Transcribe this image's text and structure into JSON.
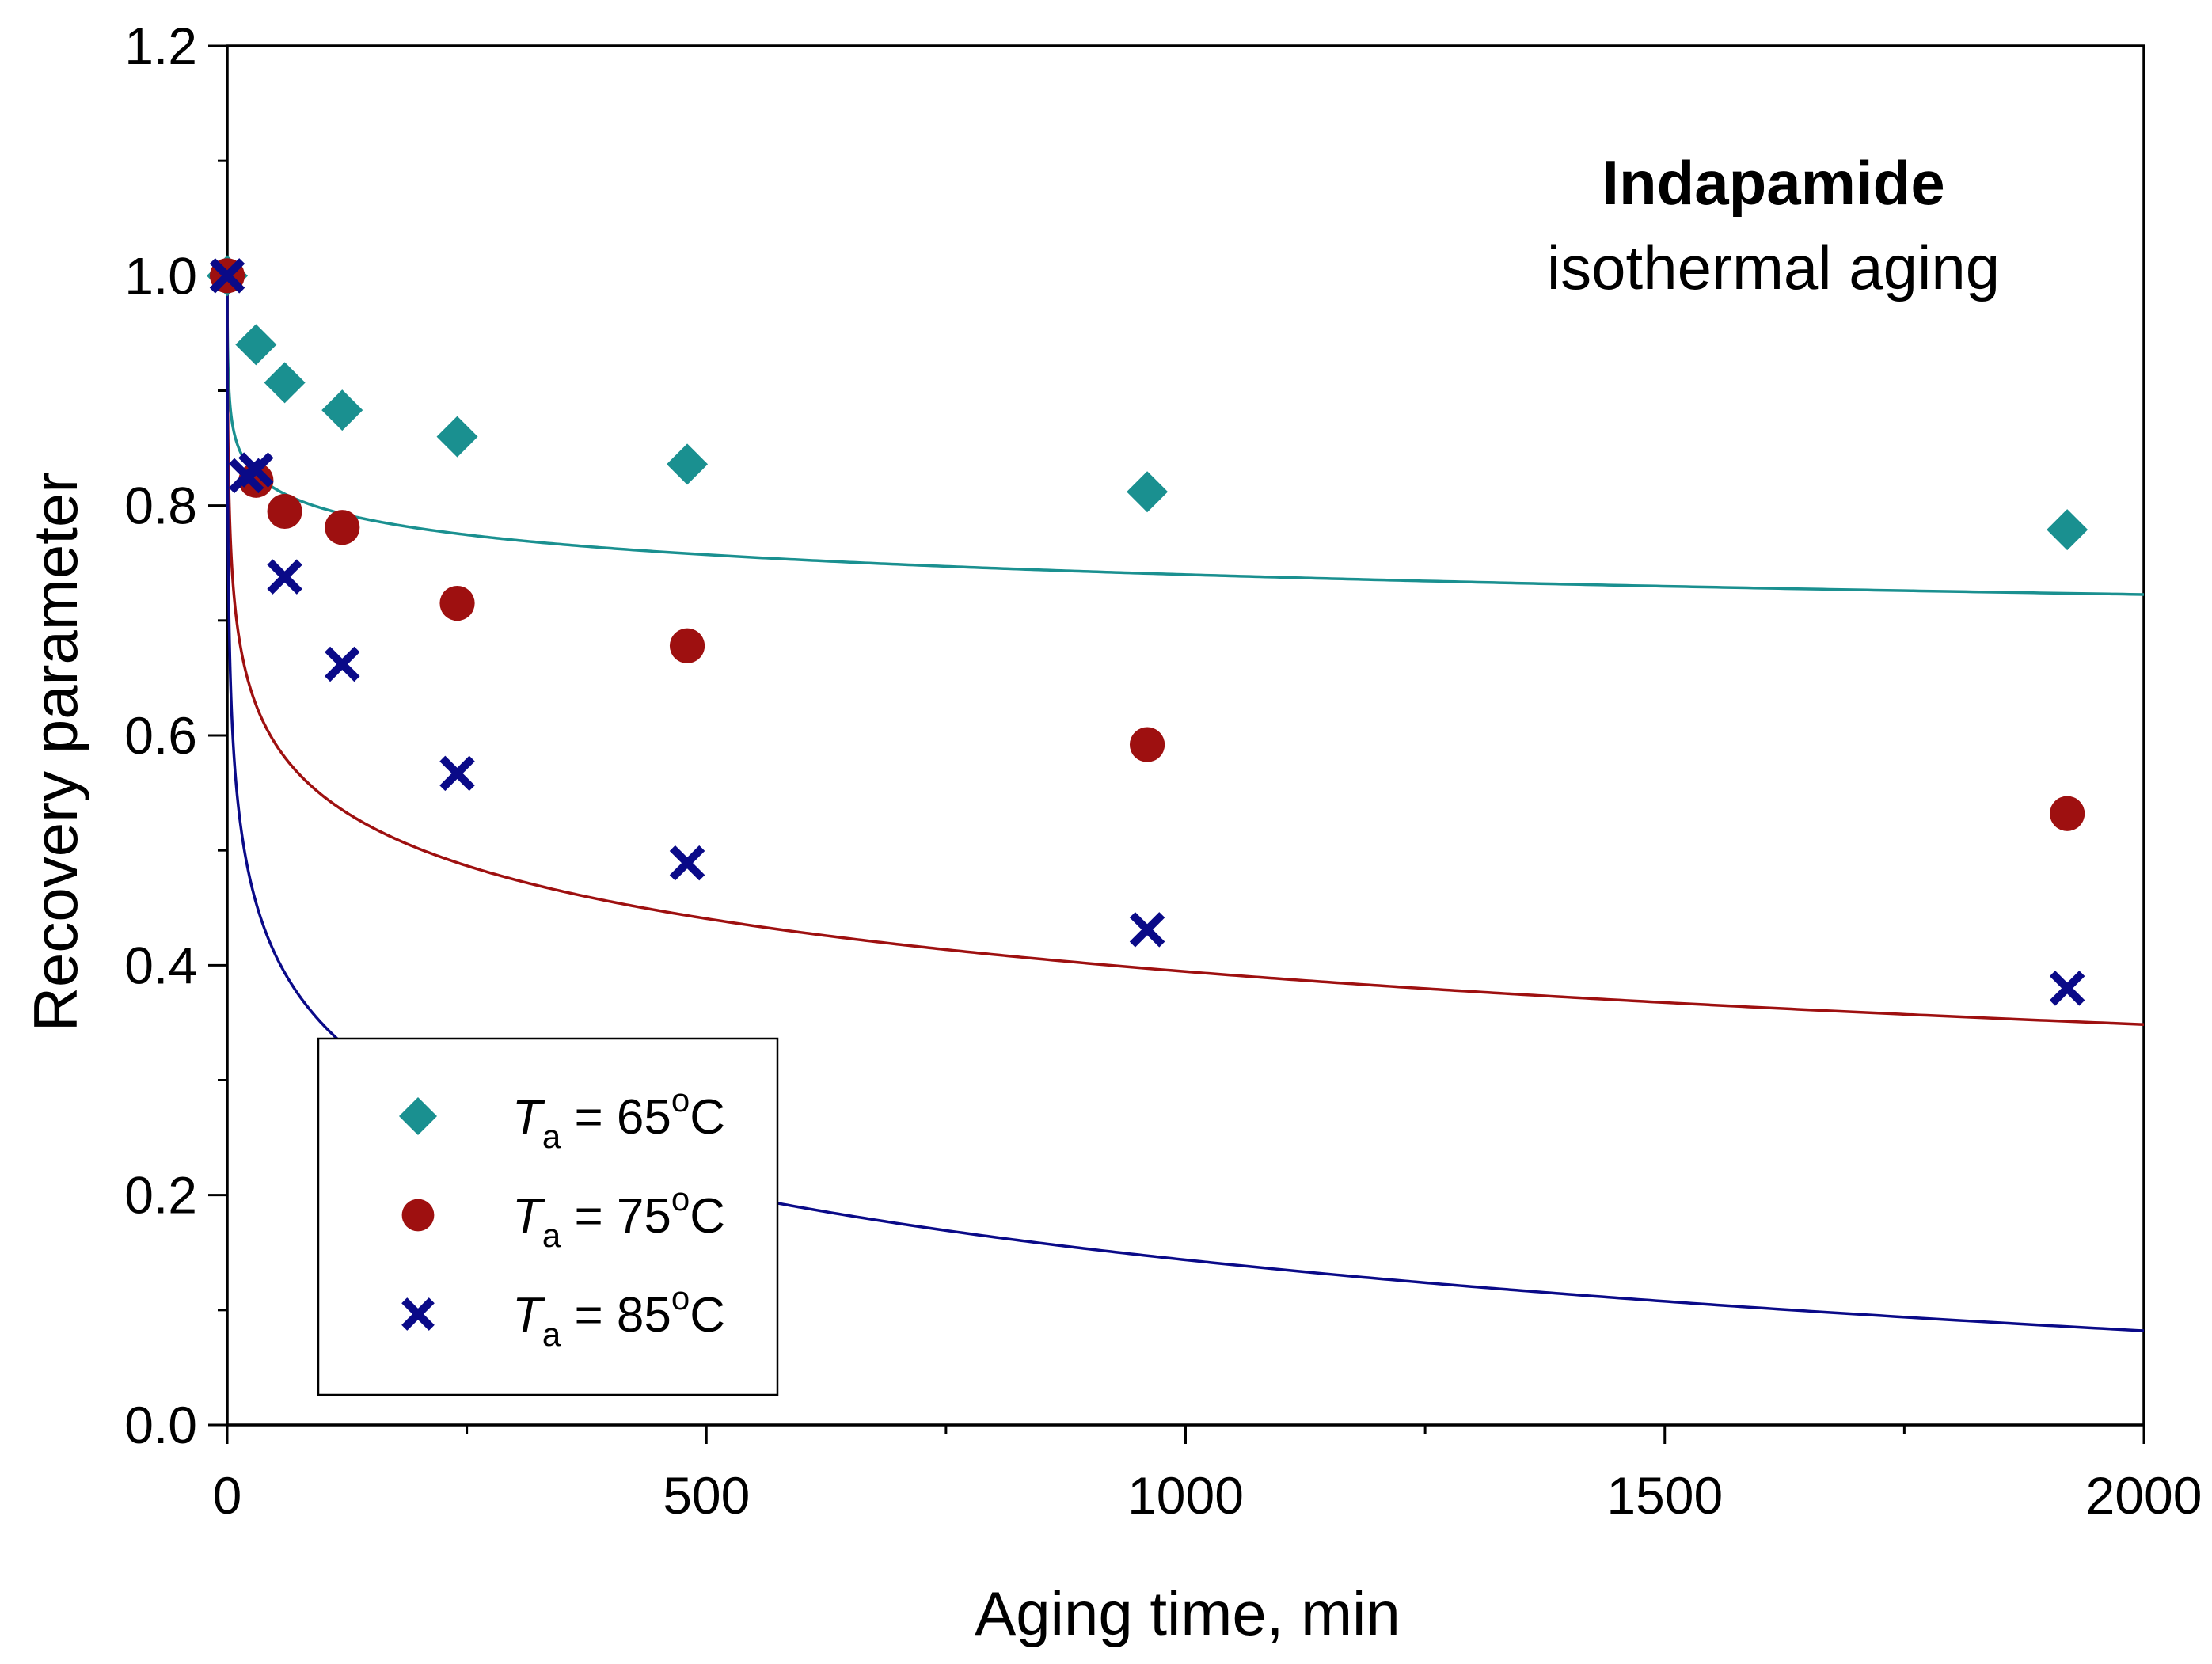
{
  "chart_data": {
    "type": "scatter",
    "title": "Indapamide",
    "subtitle": "isothermal aging",
    "xlabel": "Aging time, min",
    "ylabel": "Recovery parameter",
    "xlim": [
      0,
      2000
    ],
    "ylim": [
      0.0,
      1.2
    ],
    "xticks": [
      0,
      500,
      1000,
      1500,
      2000
    ],
    "xtick_labels": [
      "0",
      "500",
      "1000",
      "1500",
      "2000"
    ],
    "yticks": [
      0.0,
      0.2,
      0.4,
      0.6,
      0.8,
      1.0,
      1.2
    ],
    "ytick_labels": [
      "0.0",
      "0.2",
      "0.4",
      "0.6",
      "0.8",
      "1.0",
      "1.2"
    ],
    "grid": false,
    "legend_position": "bottom-left",
    "series": [
      {
        "name": "Ta = 65oC",
        "legend_prefix": "T",
        "legend_sub": "a",
        "legend_mid": " = 65",
        "legend_sup": "o",
        "legend_suffix": "C",
        "marker": "diamond",
        "color": "#1a9090",
        "x": [
          0,
          30,
          60,
          120,
          240,
          480,
          960,
          1920
        ],
        "y": [
          1.0,
          0.94,
          0.907,
          0.883,
          0.86,
          0.836,
          0.812,
          0.779
        ],
        "fit": {
          "tau": 0.5,
          "beta": 0.5,
          "A": 0.07,
          "B": 0.025
        }
      },
      {
        "name": "Ta = 75oC",
        "legend_prefix": "T",
        "legend_sub": "a",
        "legend_mid": " = 75",
        "legend_sup": "o",
        "legend_suffix": "C",
        "marker": "circle",
        "color": "#9e1010",
        "x": [
          0,
          30,
          60,
          120,
          240,
          480,
          960,
          1920
        ],
        "y": [
          1.0,
          0.822,
          0.795,
          0.781,
          0.715,
          0.678,
          0.592,
          0.532
        ],
        "fit": {
          "tau": 0.5,
          "beta": 0.5,
          "A": 0.1,
          "B": 0.0665
        }
      },
      {
        "name": "Ta = 85oC",
        "legend_prefix": "T",
        "legend_sub": "a",
        "legend_mid": " = 85",
        "legend_sup": "o",
        "legend_suffix": "C",
        "marker": "x",
        "color": "#0a0a88",
        "x": [
          0,
          20,
          30,
          60,
          120,
          240,
          480,
          960,
          1920
        ],
        "y": [
          1.0,
          0.826,
          0.831,
          0.738,
          0.662,
          0.567,
          0.489,
          0.431,
          0.38
        ],
        "fit": {
          "tau": 0.4,
          "beta": 0.5,
          "A": 0.16,
          "B": 0.089
        }
      }
    ]
  }
}
